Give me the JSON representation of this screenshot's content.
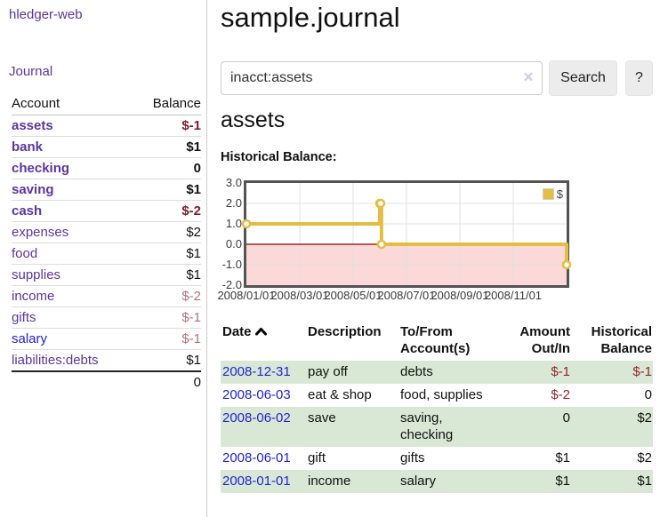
{
  "app": {
    "title": "hledger-web"
  },
  "sidebar": {
    "journal_link": "Journal",
    "accounts_table": {
      "headers": [
        "Account",
        "Balance"
      ],
      "rows": [
        {
          "name": "assets",
          "balance": "$-1",
          "depth": 1,
          "in_acct": true,
          "negative": true
        },
        {
          "name": "bank",
          "balance": "$1",
          "depth": 2,
          "in_acct": true,
          "negative": false
        },
        {
          "name": "checking",
          "balance": "0",
          "depth": 3,
          "in_acct": true,
          "negative": false
        },
        {
          "name": "saving",
          "balance": "$1",
          "depth": 3,
          "in_acct": true,
          "negative": false
        },
        {
          "name": "cash",
          "balance": "$-2",
          "depth": 2,
          "in_acct": true,
          "negative": true
        },
        {
          "name": "expenses",
          "balance": "$2",
          "depth": 1,
          "in_acct": false,
          "negative": false
        },
        {
          "name": "food",
          "balance": "$1",
          "depth": 2,
          "in_acct": false,
          "negative": false
        },
        {
          "name": "supplies",
          "balance": "$1",
          "depth": 2,
          "in_acct": false,
          "negative": false
        },
        {
          "name": "income",
          "balance": "$-2",
          "depth": 1,
          "in_acct": false,
          "negative": true
        },
        {
          "name": "gifts",
          "balance": "$-1",
          "depth": 2,
          "in_acct": false,
          "negative": true
        },
        {
          "name": "salary",
          "balance": "$-1",
          "depth": 2,
          "in_acct": false,
          "negative": true,
          "link": "blue"
        },
        {
          "name": "liabilities:debts",
          "balance": "$1",
          "depth": 1,
          "in_acct": false,
          "negative": false
        }
      ],
      "total": "0"
    }
  },
  "main": {
    "title": "sample.journal",
    "search": {
      "value": "inacct:assets",
      "clear_icon": "×",
      "button": "Search",
      "help_button": "?"
    },
    "account_heading": "assets",
    "chart_label": "Historical Balance:"
  },
  "chart_data": {
    "type": "line",
    "step": true,
    "title": "Historical Balance:",
    "series": [
      {
        "name": "$",
        "color": "#e6bd43",
        "points": [
          {
            "date": "2008-01-01",
            "value": 1
          },
          {
            "date": "2008-06-01",
            "value": 2
          },
          {
            "date": "2008-06-02",
            "value": 2
          },
          {
            "date": "2008-06-03",
            "value": 0
          },
          {
            "date": "2008-12-31",
            "value": -1
          }
        ]
      }
    ],
    "x_range": [
      "2008-01-01",
      "2008-12-31"
    ],
    "x_ticks": [
      "2008/01/01",
      "2008/03/01",
      "2008/05/01",
      "2008/07/01",
      "2008/09/01",
      "2008/11/01"
    ],
    "y_ticks": [
      "3.0",
      "2.0",
      "1.0",
      "0.0",
      "-1.0",
      "-2.0"
    ],
    "ylim": [
      -2,
      3
    ],
    "grid": true,
    "legend_position": "top-right",
    "negative_region_color": "#fbd9d9",
    "zero_line_color": "#8b0000"
  },
  "transactions": {
    "headers": {
      "date": "Date",
      "description": "Description",
      "accounts": "To/From\nAccount(s)",
      "amount": "Amount\nOut/In",
      "balance": "Historical\nBalance"
    },
    "rows": [
      {
        "date": "2008-12-31",
        "description": "pay off",
        "accounts": "debts",
        "amount": "$-1",
        "balance": "$-1"
      },
      {
        "date": "2008-06-03",
        "description": "eat & shop",
        "accounts": "food, supplies",
        "amount": "$-2",
        "balance": "0"
      },
      {
        "date": "2008-06-02",
        "description": "save",
        "accounts": "saving,\nchecking",
        "amount": "0",
        "balance": "$2"
      },
      {
        "date": "2008-06-01",
        "description": "gift",
        "accounts": "gifts",
        "amount": "$1",
        "balance": "$2"
      },
      {
        "date": "2008-01-01",
        "description": "income",
        "accounts": "salary",
        "amount": "$1",
        "balance": "$1"
      }
    ]
  }
}
